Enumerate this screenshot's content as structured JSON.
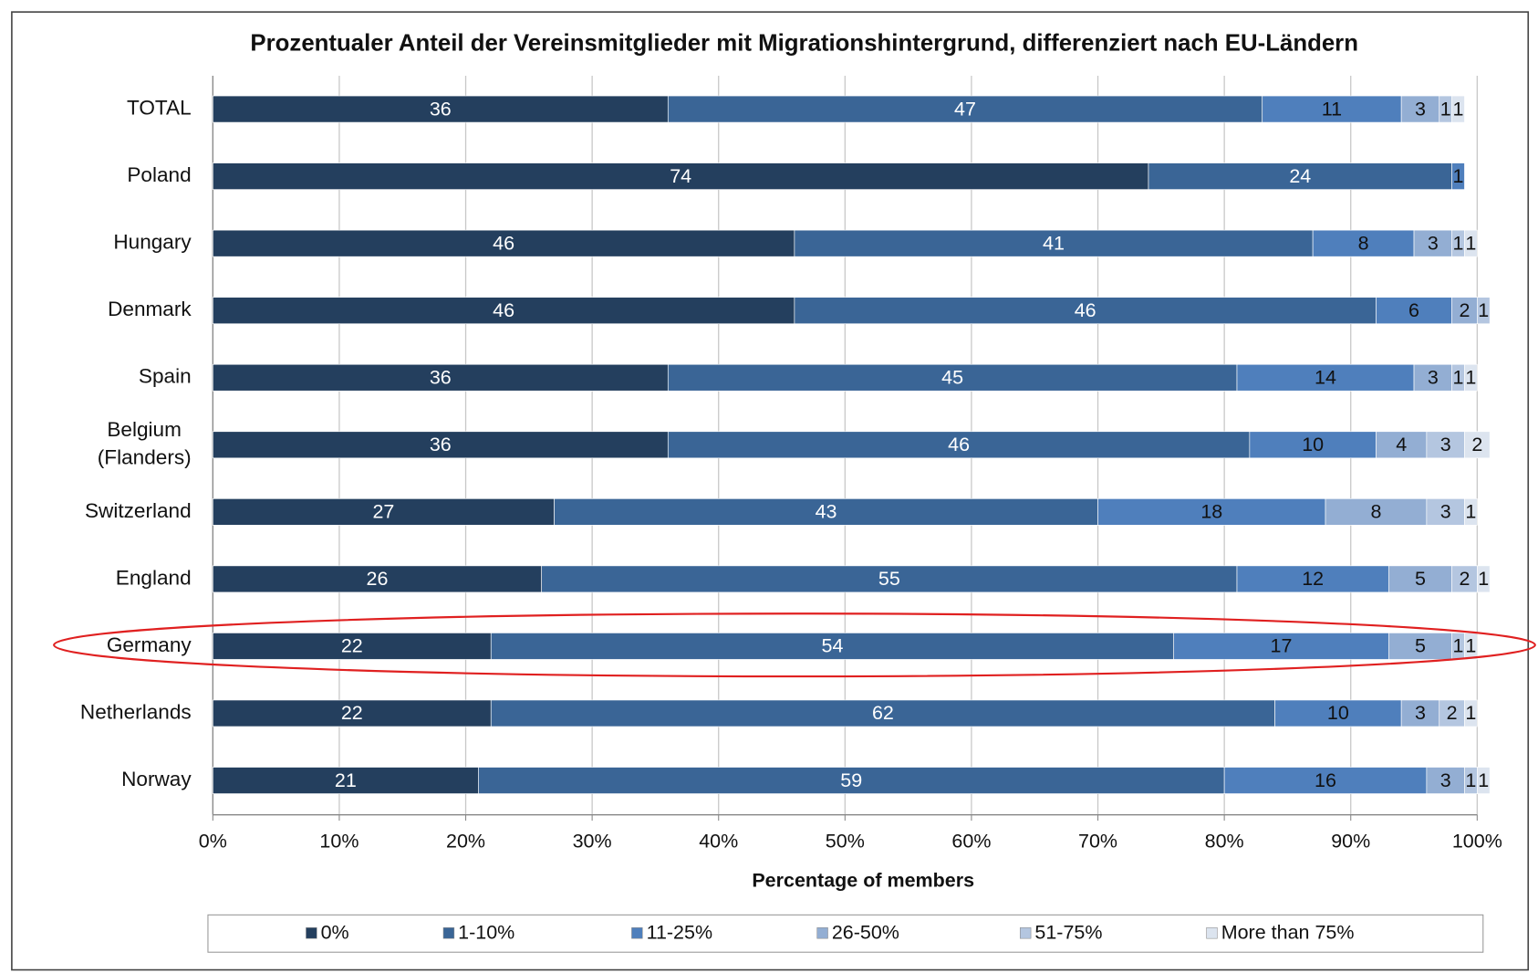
{
  "chart_data": {
    "type": "stacked-barh",
    "title": "Prozentualer Anteil der Vereinsmitglieder mit Migrationshintergrund, differenziert nach EU-Ländern",
    "xlabel": "Percentage of members",
    "categories": [
      "TOTAL",
      "Poland",
      "Hungary",
      "Denmark",
      "Spain",
      "Belgium (Flanders)",
      "Switzerland",
      "England",
      "Germany",
      "Netherlands",
      "Norway"
    ],
    "series": [
      {
        "name": "0%",
        "color": "#243f5e",
        "values": [
          36,
          74,
          46,
          46,
          36,
          36,
          27,
          26,
          22,
          22,
          21
        ]
      },
      {
        "name": "1-10%",
        "color": "#3a6596",
        "values": [
          47,
          24,
          41,
          46,
          45,
          46,
          43,
          55,
          54,
          62,
          59
        ]
      },
      {
        "name": "11-25%",
        "color": "#4f7fbc",
        "values": [
          11,
          1,
          8,
          6,
          14,
          10,
          18,
          12,
          17,
          10,
          16
        ]
      },
      {
        "name": "26-50%",
        "color": "#93aed3",
        "values": [
          3,
          null,
          3,
          2,
          3,
          4,
          8,
          5,
          5,
          3,
          3
        ]
      },
      {
        "name": "51-75%",
        "color": "#b4c6e0",
        "values": [
          1,
          null,
          1,
          1,
          1,
          3,
          3,
          2,
          1,
          2,
          1
        ]
      },
      {
        "name": "More than 75%",
        "color": "#dce4ef",
        "values": [
          1,
          null,
          1,
          null,
          1,
          2,
          1,
          1,
          1,
          1,
          1
        ]
      }
    ],
    "xlim": [
      0,
      100
    ],
    "xticks": [
      {
        "value": 0,
        "label": "0%"
      },
      {
        "value": 10,
        "label": "10%"
      },
      {
        "value": 20,
        "label": "20%"
      },
      {
        "value": 30,
        "label": "30%"
      },
      {
        "value": 40,
        "label": "40%"
      },
      {
        "value": 50,
        "label": "50%"
      },
      {
        "value": 60,
        "label": "60%"
      },
      {
        "value": 70,
        "label": "70%"
      },
      {
        "value": 80,
        "label": "80%"
      },
      {
        "value": 90,
        "label": "90%"
      },
      {
        "value": 100,
        "label": "100%"
      }
    ],
    "grid": true,
    "legend": "bottom"
  }
}
